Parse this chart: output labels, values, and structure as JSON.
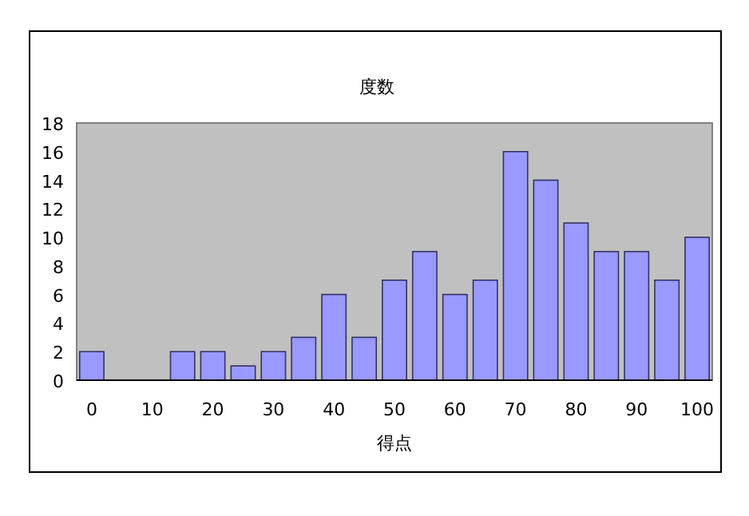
{
  "chart_data": {
    "type": "bar",
    "title": "度数",
    "xlabel": "得点",
    "categories": [
      "0",
      null,
      "10",
      null,
      "20",
      null,
      "30",
      null,
      "40",
      null,
      "50",
      null,
      "60",
      null,
      "70",
      null,
      "80",
      null,
      "90",
      null,
      "100"
    ],
    "values": [
      2,
      0,
      0,
      2,
      2,
      1,
      2,
      3,
      6,
      3,
      7,
      9,
      6,
      7,
      16,
      14,
      11,
      9,
      9,
      7,
      10
    ],
    "color": "#9999ff",
    "ylim": [
      0,
      18
    ],
    "yticks": [
      0,
      2,
      4,
      6,
      8,
      10,
      12,
      14,
      16,
      18
    ],
    "grid": false
  }
}
